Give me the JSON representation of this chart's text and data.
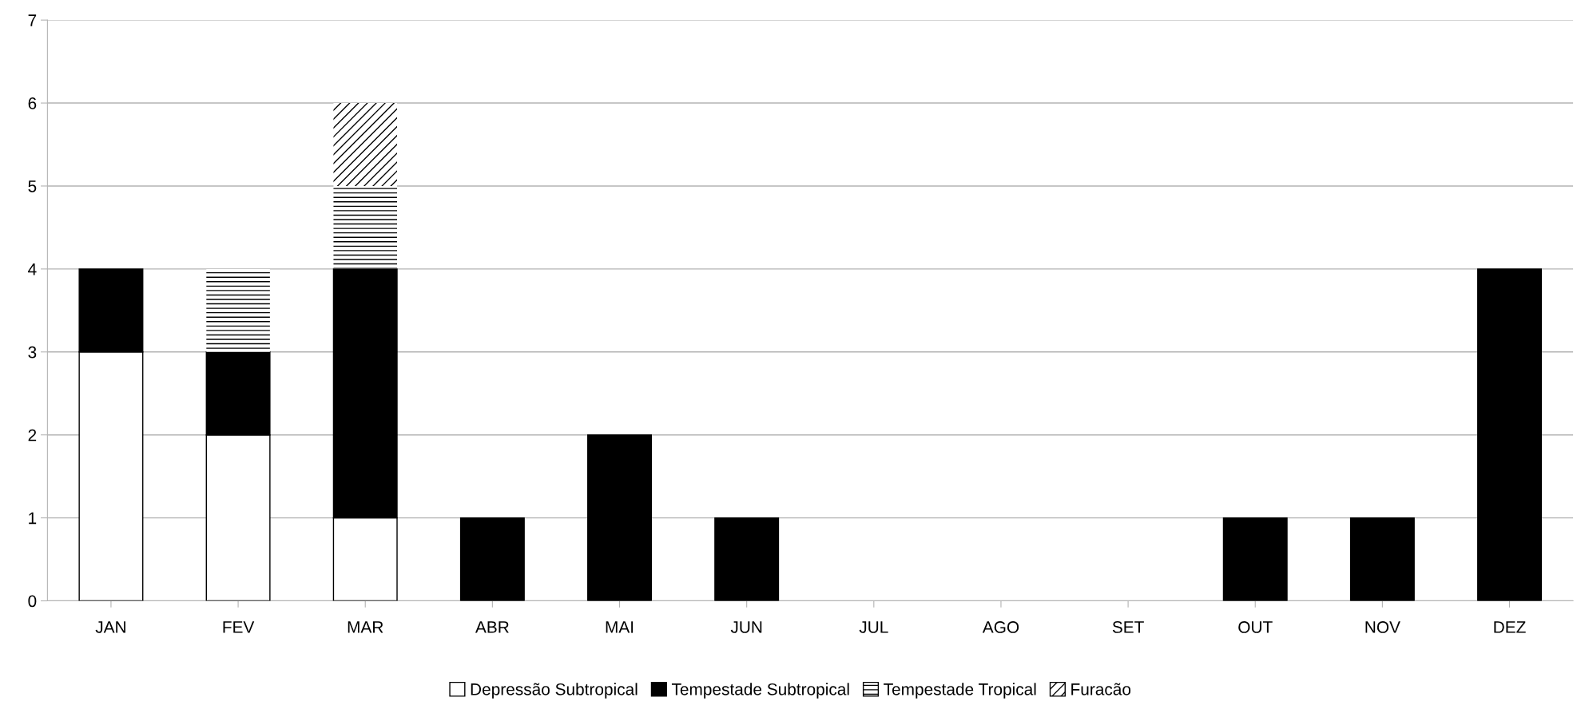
{
  "chart_data": {
    "type": "bar",
    "stacked": true,
    "categories": [
      "JAN",
      "FEV",
      "MAR",
      "ABR",
      "MAI",
      "JUN",
      "JUL",
      "AGO",
      "SET",
      "OUT",
      "NOV",
      "DEZ"
    ],
    "series": [
      {
        "name": "Depressão Subtropical",
        "color": "#ffffff",
        "values": [
          3,
          2,
          1,
          0,
          0,
          0,
          0,
          0,
          0,
          0,
          0,
          0
        ]
      },
      {
        "name": "Tempestade Subtropical",
        "color": "#000000",
        "values": [
          1,
          1,
          3,
          1,
          2,
          1,
          0,
          0,
          0,
          1,
          1,
          4
        ]
      },
      {
        "name": "Tempestade Tropical",
        "color": "#ffffff",
        "values": [
          0,
          1,
          1,
          0,
          0,
          0,
          0,
          0,
          0,
          0,
          0,
          0
        ]
      },
      {
        "name": "Furacão",
        "color": "#ffffff",
        "values": [
          0,
          0,
          1,
          0,
          0,
          0,
          0,
          0,
          0,
          0,
          0,
          0
        ]
      }
    ],
    "ylim": [
      0,
      7
    ],
    "yticks": [
      0,
      1,
      2,
      3,
      4,
      5,
      6,
      7
    ],
    "grid": "y",
    "legend": "bottom"
  }
}
